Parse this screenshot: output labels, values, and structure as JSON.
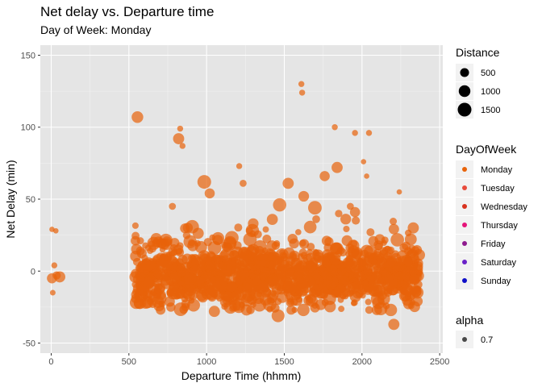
{
  "chart_data": {
    "type": "scatter",
    "title": "Net delay vs. Departure time",
    "subtitle": "Day of Week: Monday",
    "xlabel": "Departure Time (hhmm)",
    "ylabel": "Net Delay (min)",
    "xlim": [
      -70,
      2520
    ],
    "ylim": [
      -57,
      157
    ],
    "x_ticks": [
      0,
      500,
      1000,
      1500,
      2000,
      2500
    ],
    "x_tick_labels": [
      "0",
      "500",
      "1000",
      "1500",
      "2000",
      "2500"
    ],
    "y_ticks": [
      -50,
      0,
      50,
      100,
      150
    ],
    "y_tick_labels": [
      "-50",
      "0",
      "50",
      "100",
      "150"
    ],
    "grid": true,
    "background": "#e5e5e5",
    "point_color": "#e8630a",
    "point_alpha": 0.7,
    "legend_position": "right",
    "legends": {
      "distance": {
        "title": "Distance",
        "sizes": [
          500,
          1000,
          1500
        ],
        "labels": [
          "500",
          "1000",
          "1500"
        ]
      },
      "dayofweek": {
        "title": "DayOfWeek",
        "entries": [
          {
            "label": "Monday",
            "color": "#e8630a"
          },
          {
            "label": "Tuesday",
            "color": "#e84b3c"
          },
          {
            "label": "Wednesday",
            "color": "#d8321e"
          },
          {
            "label": "Thursday",
            "color": "#e5157a"
          },
          {
            "label": "Friday",
            "color": "#8e1a8e"
          },
          {
            "label": "Saturday",
            "color": "#6a22c8"
          },
          {
            "label": "Sunday",
            "color": "#1010c8"
          }
        ]
      },
      "alpha": {
        "title": "alpha",
        "labels": [
          "0.7"
        ]
      }
    },
    "clusters": [
      {
        "x_range": [
          540,
          2370
        ],
        "y_center": -3,
        "y_spread": 11,
        "count": 1200
      }
    ],
    "outliers": [
      {
        "x": 5,
        "y": -5,
        "distance": 700
      },
      {
        "x": 35,
        "y": -3,
        "distance": 400
      },
      {
        "x": 55,
        "y": -4,
        "distance": 900
      },
      {
        "x": 20,
        "y": 4,
        "distance": 150
      },
      {
        "x": 5,
        "y": 29,
        "distance": 100
      },
      {
        "x": 30,
        "y": 28,
        "distance": 100
      },
      {
        "x": 10,
        "y": -15,
        "distance": 120
      },
      {
        "x": 555,
        "y": 107,
        "distance": 1000
      },
      {
        "x": 830,
        "y": 99,
        "distance": 150
      },
      {
        "x": 820,
        "y": 92,
        "distance": 900
      },
      {
        "x": 845,
        "y": 87,
        "distance": 150
      },
      {
        "x": 985,
        "y": 62,
        "distance": 1500
      },
      {
        "x": 1020,
        "y": 54,
        "distance": 700
      },
      {
        "x": 1210,
        "y": 73,
        "distance": 150
      },
      {
        "x": 1235,
        "y": 61,
        "distance": 250
      },
      {
        "x": 1610,
        "y": 130,
        "distance": 150
      },
      {
        "x": 1615,
        "y": 124,
        "distance": 150
      },
      {
        "x": 1525,
        "y": 61,
        "distance": 900
      },
      {
        "x": 1625,
        "y": 52,
        "distance": 800
      },
      {
        "x": 1470,
        "y": 46,
        "distance": 1400
      },
      {
        "x": 1760,
        "y": 66,
        "distance": 700
      },
      {
        "x": 1825,
        "y": 100,
        "distance": 150
      },
      {
        "x": 1840,
        "y": 72,
        "distance": 900
      },
      {
        "x": 1955,
        "y": 96,
        "distance": 150
      },
      {
        "x": 2045,
        "y": 96,
        "distance": 150
      },
      {
        "x": 2010,
        "y": 76,
        "distance": 100
      },
      {
        "x": 2030,
        "y": 66,
        "distance": 100
      },
      {
        "x": 2240,
        "y": 55,
        "distance": 100
      },
      {
        "x": 2205,
        "y": -37,
        "distance": 900
      },
      {
        "x": 1460,
        "y": -31,
        "distance": 1300
      },
      {
        "x": 1050,
        "y": -28,
        "distance": 900
      },
      {
        "x": 2340,
        "y": -13,
        "distance": 800
      },
      {
        "x": 2330,
        "y": 30,
        "distance": 900
      },
      {
        "x": 1925,
        "y": 45,
        "distance": 250
      },
      {
        "x": 1955,
        "y": 41,
        "distance": 700
      },
      {
        "x": 780,
        "y": 45,
        "distance": 250
      },
      {
        "x": 1300,
        "y": 33,
        "distance": 800
      },
      {
        "x": 1850,
        "y": 40,
        "distance": 300
      }
    ]
  }
}
